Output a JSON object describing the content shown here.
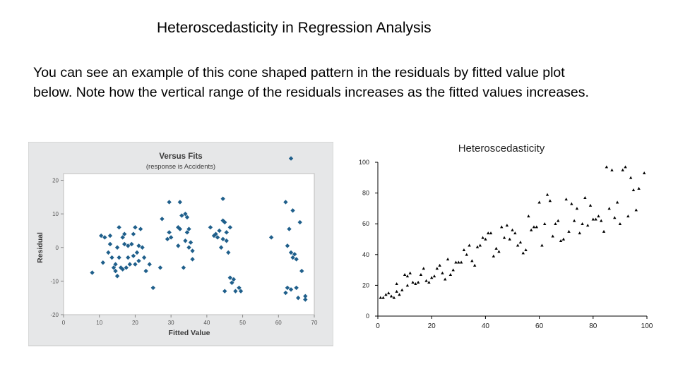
{
  "slide": {
    "title": "Heteroscedasticity in Regression Analysis",
    "body_line1": "You can see an example of this cone shaped pattern in the residuals by fitted value plot",
    "body_line2": "below. Note how the vertical range of the residuals increases as the fitted values increases."
  },
  "chart_data": [
    {
      "type": "scatter",
      "title": "Versus Fits",
      "subtitle": "(response is Accidents)",
      "xlabel": "Fitted Value",
      "ylabel": "Residual",
      "xlim": [
        0,
        70
      ],
      "ylim": [
        -20,
        22
      ],
      "xticks": [
        "0",
        "10",
        "20",
        "30",
        "40",
        "50",
        "60",
        "70"
      ],
      "yticks": [
        "20",
        "10",
        "0",
        "-10",
        "-20"
      ],
      "grid": false,
      "marker_color": "#1f5f8b",
      "panel_color": "#e6e7e8",
      "points": [
        [
          8,
          -7.5
        ],
        [
          10.5,
          3.5
        ],
        [
          11,
          -4.5
        ],
        [
          11.5,
          3
        ],
        [
          12.5,
          -1.5
        ],
        [
          13,
          1
        ],
        [
          13.5,
          -3
        ],
        [
          13,
          3.5
        ],
        [
          14,
          -6
        ],
        [
          14.5,
          -7
        ],
        [
          15,
          0
        ],
        [
          14.5,
          -5
        ],
        [
          15.5,
          -3
        ],
        [
          15,
          -8.5
        ],
        [
          15.5,
          6
        ],
        [
          16,
          -6
        ],
        [
          16.5,
          -6.5
        ],
        [
          16.5,
          3
        ],
        [
          17,
          1
        ],
        [
          17.5,
          -6
        ],
        [
          17,
          4
        ],
        [
          18,
          -3
        ],
        [
          18,
          0.5
        ],
        [
          18.5,
          -5
        ],
        [
          19,
          1
        ],
        [
          19.5,
          -2.5
        ],
        [
          19.5,
          4
        ],
        [
          20,
          -5
        ],
        [
          20.5,
          -1.5
        ],
        [
          20,
          6
        ],
        [
          21,
          0.5
        ],
        [
          21,
          -4
        ],
        [
          21.5,
          5.5
        ],
        [
          22,
          0
        ],
        [
          22.5,
          -3
        ],
        [
          23,
          -7
        ],
        [
          24,
          -5
        ],
        [
          25,
          -12
        ],
        [
          27,
          -6
        ],
        [
          27.5,
          8.5
        ],
        [
          29,
          2.5
        ],
        [
          29.5,
          4.5
        ],
        [
          29.5,
          13.5
        ],
        [
          30,
          3
        ],
        [
          32,
          0.5
        ],
        [
          32,
          6
        ],
        [
          32.5,
          5.5
        ],
        [
          32.5,
          13.5
        ],
        [
          33,
          9.5
        ],
        [
          33.5,
          -6
        ],
        [
          34,
          10
        ],
        [
          34,
          2
        ],
        [
          34.5,
          4.5
        ],
        [
          34.5,
          9
        ],
        [
          35,
          5.5
        ],
        [
          35,
          0
        ],
        [
          35.5,
          1.5
        ],
        [
          36,
          -3.5
        ],
        [
          36,
          -1
        ],
        [
          41,
          6
        ],
        [
          42,
          3.5
        ],
        [
          42.5,
          4
        ],
        [
          43,
          3
        ],
        [
          43.5,
          5
        ],
        [
          44,
          0
        ],
        [
          44.5,
          8
        ],
        [
          44.5,
          2.5
        ],
        [
          44.5,
          14.5
        ],
        [
          45,
          -13
        ],
        [
          45,
          7.5
        ],
        [
          45.5,
          4.5
        ],
        [
          45.5,
          2
        ],
        [
          46,
          -1.5
        ],
        [
          46.5,
          6
        ],
        [
          46.5,
          -9
        ],
        [
          47,
          -10.5
        ],
        [
          47.5,
          -9.5
        ],
        [
          48,
          -13
        ],
        [
          49,
          -12
        ],
        [
          49.5,
          -13
        ],
        [
          58,
          3
        ],
        [
          62,
          -13.5
        ],
        [
          62,
          13.5
        ],
        [
          62.5,
          -12
        ],
        [
          62.5,
          0.5
        ],
        [
          63,
          5.5
        ],
        [
          63.5,
          -12.5
        ],
        [
          63.5,
          -1.5
        ],
        [
          63.5,
          26.5
        ],
        [
          64,
          11
        ],
        [
          64,
          -3
        ],
        [
          64.5,
          -2
        ],
        [
          65,
          -12
        ],
        [
          65,
          -3.5
        ],
        [
          65.5,
          -15
        ],
        [
          66,
          7.5
        ],
        [
          66.5,
          -7
        ],
        [
          67.5,
          -14.5
        ],
        [
          67.5,
          -15.5
        ]
      ]
    },
    {
      "type": "scatter",
      "title": "Heteroscedasticity",
      "xlabel": "",
      "ylabel": "",
      "xlim": [
        0,
        100
      ],
      "ylim": [
        0,
        100
      ],
      "xticks": [
        "0",
        "20",
        "40",
        "60",
        "80",
        "100"
      ],
      "yticks": [
        "100",
        "80",
        "60",
        "40",
        "20",
        "0"
      ],
      "grid": false,
      "marker_color": "#000000",
      "points": [
        [
          1,
          12
        ],
        [
          2,
          12
        ],
        [
          3,
          14
        ],
        [
          4,
          15
        ],
        [
          5,
          13
        ],
        [
          6,
          12
        ],
        [
          7,
          21
        ],
        [
          7,
          16
        ],
        [
          8,
          14
        ],
        [
          9,
          17
        ],
        [
          10,
          27
        ],
        [
          11,
          26
        ],
        [
          11,
          20
        ],
        [
          12,
          28
        ],
        [
          13,
          22
        ],
        [
          14,
          21
        ],
        [
          15,
          22
        ],
        [
          16,
          27
        ],
        [
          17,
          31
        ],
        [
          18,
          23
        ],
        [
          19,
          22
        ],
        [
          20,
          25
        ],
        [
          21,
          26
        ],
        [
          22,
          31
        ],
        [
          23,
          33
        ],
        [
          24,
          28
        ],
        [
          25,
          24
        ],
        [
          26,
          37
        ],
        [
          27,
          27
        ],
        [
          28,
          30
        ],
        [
          29,
          35
        ],
        [
          30,
          35
        ],
        [
          31,
          35
        ],
        [
          32,
          43
        ],
        [
          33,
          40
        ],
        [
          34,
          46
        ],
        [
          35,
          36
        ],
        [
          36,
          33
        ],
        [
          37,
          45
        ],
        [
          38,
          46
        ],
        [
          39,
          51
        ],
        [
          40,
          50
        ],
        [
          41,
          54
        ],
        [
          42,
          54
        ],
        [
          43,
          39
        ],
        [
          44,
          44
        ],
        [
          45,
          42
        ],
        [
          46,
          58
        ],
        [
          47,
          51
        ],
        [
          48,
          59
        ],
        [
          49,
          50
        ],
        [
          50,
          56
        ],
        [
          51,
          54
        ],
        [
          52,
          46
        ],
        [
          53,
          48
        ],
        [
          54,
          41
        ],
        [
          55,
          43
        ],
        [
          56,
          65
        ],
        [
          57,
          56
        ],
        [
          58,
          58
        ],
        [
          59,
          58
        ],
        [
          60,
          74
        ],
        [
          61,
          46
        ],
        [
          62,
          60
        ],
        [
          63,
          79
        ],
        [
          64,
          75
        ],
        [
          65,
          52
        ],
        [
          66,
          60
        ],
        [
          67,
          62
        ],
        [
          68,
          49
        ],
        [
          69,
          50
        ],
        [
          70,
          76
        ],
        [
          71,
          55
        ],
        [
          72,
          73
        ],
        [
          73,
          62
        ],
        [
          74,
          70
        ],
        [
          75,
          54
        ],
        [
          76,
          60
        ],
        [
          77,
          77
        ],
        [
          78,
          59
        ],
        [
          79,
          72
        ],
        [
          80,
          63
        ],
        [
          81,
          63
        ],
        [
          82,
          65
        ],
        [
          83,
          62
        ],
        [
          84,
          55
        ],
        [
          85,
          97
        ],
        [
          86,
          70
        ],
        [
          87,
          95
        ],
        [
          88,
          64
        ],
        [
          89,
          74
        ],
        [
          90,
          60
        ],
        [
          91,
          95
        ],
        [
          92,
          97
        ],
        [
          93,
          65
        ],
        [
          94,
          90
        ],
        [
          95,
          82
        ],
        [
          96,
          69
        ],
        [
          97,
          83
        ],
        [
          99,
          93
        ]
      ]
    }
  ]
}
